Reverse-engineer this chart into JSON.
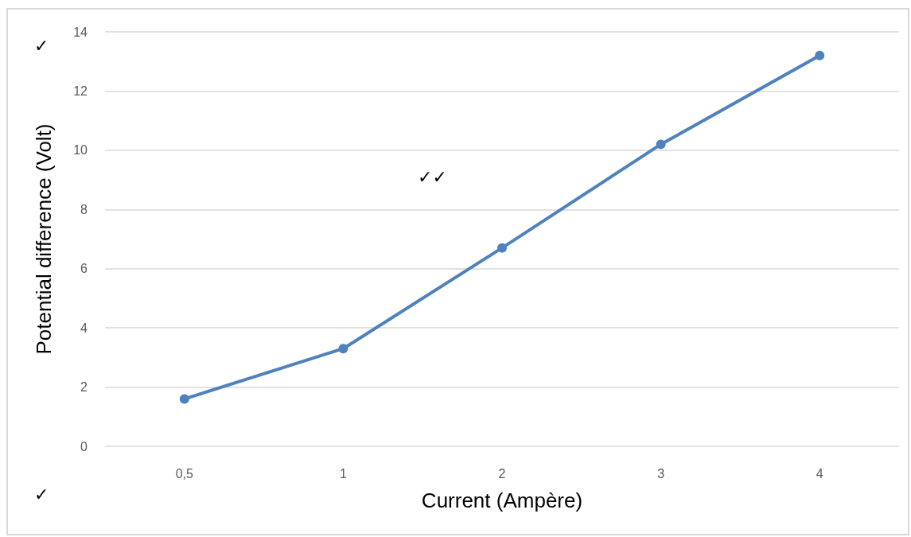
{
  "chart_data": {
    "type": "line",
    "xlabel": "Current (Ampère)",
    "ylabel": "Potential difference (Volt)",
    "categories": [
      "0,5",
      "1",
      "2",
      "3",
      "4"
    ],
    "series": [
      {
        "color": "#4f81bd",
        "values": [
          1.6,
          3.3,
          6.7,
          10.2,
          13.2
        ]
      }
    ],
    "ylim": [
      0,
      14
    ],
    "yticks": [
      0,
      2,
      4,
      6,
      8,
      10,
      12,
      14
    ],
    "grid": "y",
    "marker": "circle",
    "line_style": "solid",
    "annotations": [
      "✓",
      "✓✓",
      "✓"
    ]
  }
}
